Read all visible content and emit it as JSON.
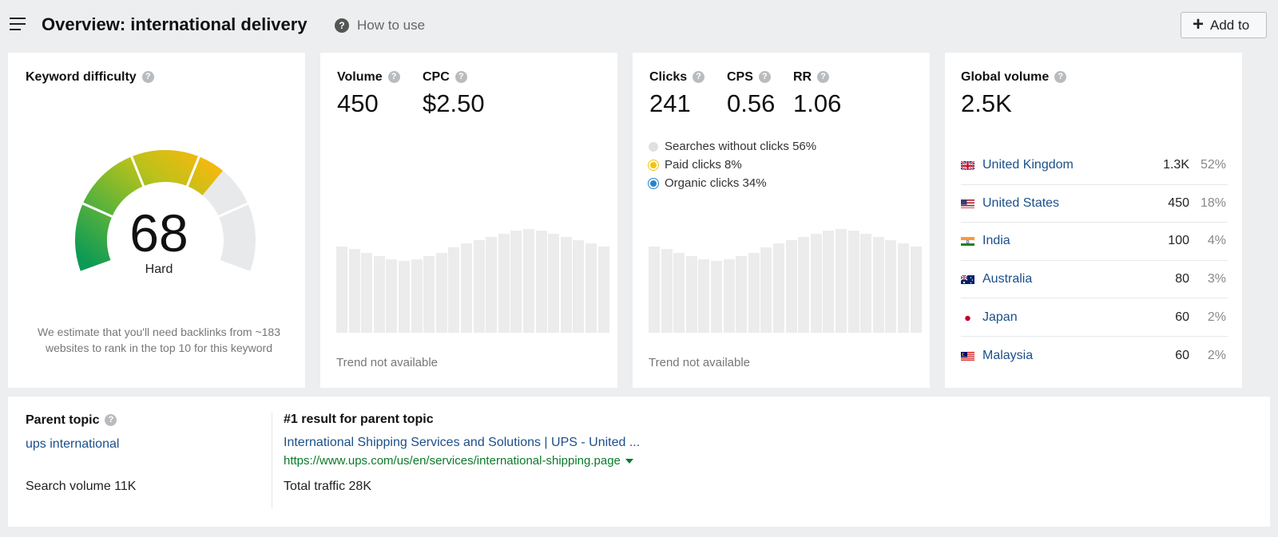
{
  "header": {
    "title": "Overview: international delivery",
    "how_to_use": "How to use",
    "add_to": "Add to",
    "help_glyph": "?"
  },
  "keyword_difficulty": {
    "label": "Keyword difficulty",
    "value": "68",
    "level": "Hard",
    "note": "We estimate that you'll need backlinks from ~183 websites to rank in the top 10 for this keyword",
    "fraction": 0.68
  },
  "volume_card": {
    "volume_label": "Volume",
    "volume_value": "450",
    "cpc_label": "CPC",
    "cpc_value": "$2.50",
    "trend_note": "Trend not available",
    "trend_levels": [
      0.8,
      0.78,
      0.74,
      0.71,
      0.68,
      0.67,
      0.68,
      0.71,
      0.74,
      0.79,
      0.83,
      0.86,
      0.89,
      0.92,
      0.95,
      0.96,
      0.95,
      0.92,
      0.89,
      0.86,
      0.83,
      0.8
    ]
  },
  "clicks_card": {
    "clicks_label": "Clicks",
    "clicks_value": "241",
    "cps_label": "CPS",
    "cps_value": "0.56",
    "rr_label": "RR",
    "rr_value": "1.06",
    "legend": [
      {
        "label": "Searches without clicks 56%",
        "color": "#e0e0e0"
      },
      {
        "label": "Paid clicks 8%",
        "color": "#f2c40f"
      },
      {
        "label": "Organic clicks 34%",
        "color": "#2a83c8"
      }
    ],
    "trend_note": "Trend not available",
    "trend_levels": [
      0.8,
      0.78,
      0.74,
      0.71,
      0.68,
      0.67,
      0.68,
      0.71,
      0.74,
      0.79,
      0.83,
      0.86,
      0.89,
      0.92,
      0.95,
      0.96,
      0.95,
      0.92,
      0.89,
      0.86,
      0.83,
      0.8
    ]
  },
  "global_volume": {
    "label": "Global volume",
    "value": "2.5K",
    "countries": [
      {
        "name": "United Kingdom",
        "volume": "1.3K",
        "share": "52%",
        "flag": "uk-flag-icon"
      },
      {
        "name": "United States",
        "volume": "450",
        "share": "18%",
        "flag": "us-flag-icon"
      },
      {
        "name": "India",
        "volume": "100",
        "share": "4%",
        "flag": "india-flag-icon"
      },
      {
        "name": "Australia",
        "volume": "80",
        "share": "3%",
        "flag": "australia-flag-icon"
      },
      {
        "name": "Japan",
        "volume": "60",
        "share": "2%",
        "flag": "japan-flag-icon"
      },
      {
        "name": "Malaysia",
        "volume": "60",
        "share": "2%",
        "flag": "malaysia-flag-icon"
      }
    ]
  },
  "parent_topic": {
    "label": "Parent topic",
    "topic": "ups international",
    "search_volume": "Search volume 11K",
    "top_result_label": "#1 result for parent topic",
    "top_result_title": "International Shipping Services and Solutions | UPS - United ...",
    "top_result_url": "https://www.ups.com/us/en/services/international-shipping.page",
    "total_traffic": "Total traffic 28K"
  },
  "colors": {
    "link": "#1b4f8a",
    "url_green": "#0a7a2a",
    "gauge_green": "#1aa35a",
    "gauge_yellow": "#f2c40f",
    "gauge_track": "#e8e9ea"
  }
}
